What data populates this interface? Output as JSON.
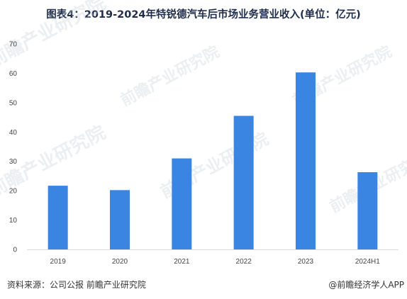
{
  "title": "图表4：2019-2024年特锐德汽车后市场业务营业收入(单位：亿元)",
  "footer": {
    "source": "资料来源：公司公报 前瞻产业研究院",
    "brand": "@前瞻经济学人APP"
  },
  "watermark": "前瞻产业研究院",
  "colors": {
    "bar": "#3a85e2",
    "axis": "#d9d9d9"
  },
  "chart_data": {
    "type": "bar",
    "title": "图表4：2019-2024年特锐德汽车后市场业务营业收入(单位：亿元)",
    "categories": [
      "2019",
      "2020",
      "2021",
      "2022",
      "2023",
      "2024H1"
    ],
    "values": [
      21.7,
      20.2,
      31.0,
      45.5,
      60.3,
      26.3
    ],
    "ylim": [
      0,
      70
    ],
    "yticks": [
      0,
      10,
      20,
      30,
      40,
      50,
      60,
      70
    ],
    "grid": false,
    "legend": "none",
    "xlabel": "",
    "ylabel": ""
  }
}
